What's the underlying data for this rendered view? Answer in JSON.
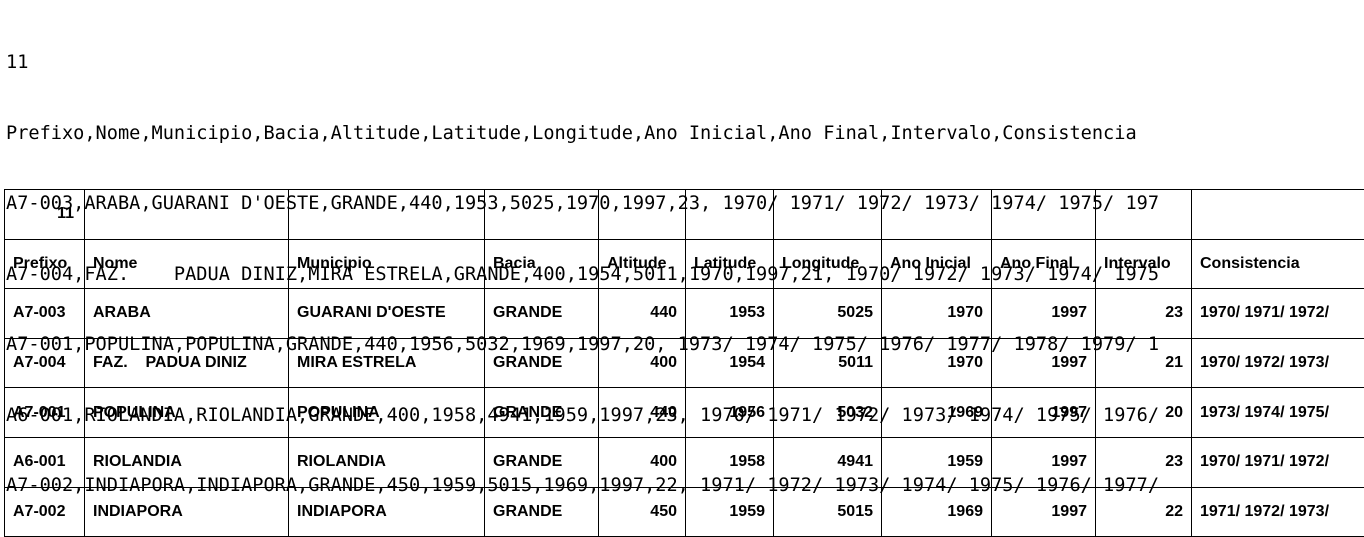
{
  "raw_text": {
    "lines": [
      "11",
      "Prefixo,Nome,Municipio,Bacia,Altitude,Latitude,Longitude,Ano Inicial,Ano Final,Intervalo,Consistencia",
      "A7-003,ARABA,GUARANI D'OESTE,GRANDE,440,1953,5025,1970,1997,23, 1970/ 1971/ 1972/ 1973/ 1974/ 1975/ 197",
      "A7-004,FAZ.    PADUA DINIZ,MIRA ESTRELA,GRANDE,400,1954,5011,1970,1997,21, 1970/ 1972/ 1973/ 1974/ 1975",
      "A7-001,POPULINA,POPULINA,GRANDE,440,1956,5032,1969,1997,20, 1973/ 1974/ 1975/ 1976/ 1977/ 1978/ 1979/ 1",
      "A6-001,RIOLANDIA,RIOLANDIA,GRANDE,400,1958,4941,1959,1997,23, 1970/ 1971/ 1972/ 1973/ 1974/ 1975/ 1976/",
      "A7-002,INDIAPORA,INDIAPORA,GRANDE,450,1959,5015,1969,1997,22, 1971/ 1972/ 1973/ 1974/ 1975/ 1976/ 1977/"
    ]
  },
  "table": {
    "count": "11",
    "headers": [
      "Prefixo",
      "Nome",
      "Municipio",
      "Bacia",
      "Altitude",
      "Latitude",
      "Longitude",
      "Ano Inicial",
      "Ano Final",
      "Intervalo",
      "Consistencia"
    ],
    "rows": [
      [
        "A7-003",
        "ARABA",
        "GUARANI D'OESTE",
        "GRANDE",
        "440",
        "1953",
        "5025",
        "1970",
        "1997",
        "23",
        "1970/ 1971/ 1972/"
      ],
      [
        "A7-004",
        "FAZ.    PADUA DINIZ",
        "MIRA ESTRELA",
        "GRANDE",
        "400",
        "1954",
        "5011",
        "1970",
        "1997",
        "21",
        "1970/ 1972/ 1973/"
      ],
      [
        "A7-001",
        "POPULINA",
        "POPULINA",
        "GRANDE",
        "440",
        "1956",
        "5032",
        "1969",
        "1997",
        "20",
        "1973/ 1974/ 1975/"
      ],
      [
        "A6-001",
        "RIOLANDIA",
        "RIOLANDIA",
        "GRANDE",
        "400",
        "1958",
        "4941",
        "1959",
        "1997",
        "23",
        "1970/ 1971/ 1972/"
      ],
      [
        "A7-002",
        "INDIAPORA",
        "INDIAPORA",
        "GRANDE",
        "450",
        "1959",
        "5015",
        "1969",
        "1997",
        "22",
        "1971/ 1972/ 1973/"
      ]
    ]
  }
}
